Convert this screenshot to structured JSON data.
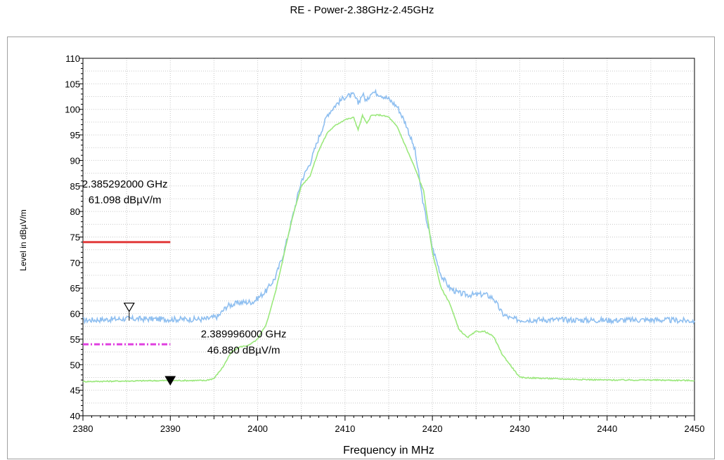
{
  "chart_data": {
    "type": "line",
    "title": "RE - Power-2.38GHz-2.45GHz",
    "xlabel": "Frequency in MHz",
    "ylabel": "Level in dBµV/m",
    "xlim": [
      2380,
      2450
    ],
    "ylim": [
      40,
      110
    ],
    "xticks": [
      2380,
      2390,
      2400,
      2410,
      2420,
      2430,
      2440,
      2450
    ],
    "yticks": [
      40,
      45,
      50,
      55,
      60,
      65,
      70,
      75,
      80,
      85,
      90,
      95,
      100,
      105,
      110
    ],
    "grid": true,
    "series": [
      {
        "color": "#8fbff0",
        "x": [
          2380,
          2385,
          2390,
          2394,
          2395.5,
          2396.5,
          2398,
          2399.5,
          2400,
          2401,
          2402,
          2403,
          2404,
          2405,
          2406,
          2407,
          2408,
          2409,
          2410,
          2411,
          2411.5,
          2412,
          2412.5,
          2413,
          2414,
          2415,
          2416,
          2417,
          2418,
          2419,
          2420,
          2421,
          2422,
          2423,
          2424,
          2425,
          2426,
          2427,
          2428,
          2429,
          2430,
          2435,
          2440,
          2445,
          2450
        ],
        "values": [
          58.7,
          59,
          58.9,
          58.9,
          59.5,
          61.5,
          62.2,
          62.3,
          63,
          64.5,
          67,
          72,
          79,
          86,
          89.5,
          94.5,
          99,
          101,
          102.5,
          102.8,
          101.2,
          103,
          101.5,
          103.5,
          103,
          102,
          100.5,
          97,
          92,
          81,
          73,
          67.5,
          65,
          64,
          63.7,
          63.7,
          63.8,
          63,
          60,
          59,
          58.8,
          58.8,
          58.7,
          58.8,
          58.6
        ]
      },
      {
        "color": "#9be87c",
        "x": [
          2380,
          2385,
          2390,
          2394,
          2395,
          2396,
          2397,
          2398,
          2399,
          2400,
          2401,
          2402,
          2403,
          2404,
          2405,
          2406,
          2407,
          2408,
          2409,
          2410,
          2411,
          2411.5,
          2412,
          2412.5,
          2413,
          2414,
          2415,
          2416,
          2417,
          2418,
          2419,
          2420,
          2421,
          2422,
          2423,
          2424,
          2425,
          2426,
          2427,
          2428,
          2430,
          2435,
          2440,
          2445,
          2450
        ],
        "values": [
          46.7,
          46.8,
          46.9,
          46.9,
          47.3,
          49.5,
          52.5,
          53.5,
          53.8,
          55,
          58,
          64,
          71.5,
          79,
          85,
          87,
          92,
          95.5,
          97,
          98,
          98.4,
          96,
          98.8,
          97.2,
          98.8,
          98.9,
          98.5,
          96.5,
          92.5,
          88.5,
          84,
          72,
          65,
          62,
          57,
          55.3,
          56.5,
          56.5,
          55.5,
          52,
          47.5,
          47.2,
          47,
          47,
          46.9
        ]
      }
    ],
    "limit_lines": [
      {
        "color": "#e23b3b",
        "style": "solid",
        "x": [
          2380,
          2390
        ],
        "value": 74
      },
      {
        "color": "#e040e0",
        "style": "dash-dot",
        "x": [
          2380,
          2390
        ],
        "value": 54
      }
    ],
    "markers": [
      {
        "symbol": "open-triangle-down",
        "x": 2385.292,
        "value": 61.098,
        "label_freq": "2.385292000 GHz",
        "label_level": "61.098 dBµV/m"
      },
      {
        "symbol": "filled-triangle-down",
        "x": 2389.996,
        "value": 46.88,
        "label_freq": "2.389996000 GHz",
        "label_level": "46.880 dBµV/m"
      }
    ]
  }
}
